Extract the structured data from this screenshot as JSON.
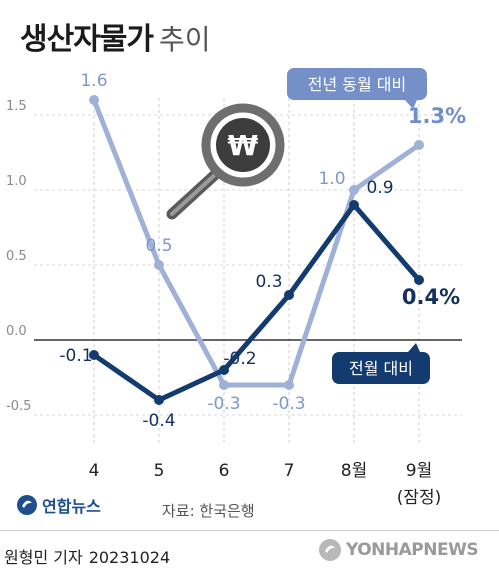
{
  "title": {
    "main": "생산자물가",
    "sub": "추이"
  },
  "chart_data": {
    "type": "line",
    "categories": [
      "4",
      "5",
      "6",
      "7",
      "8월",
      "9월"
    ],
    "category_note": "(잠정)",
    "yticks": [
      "1.5",
      "1.0",
      "0.5",
      "0.0",
      "-0.5"
    ],
    "ylim": [
      -0.6,
      1.6
    ],
    "series": [
      {
        "name": "전년 동월 대비",
        "values": [
          1.6,
          0.5,
          -0.3,
          -0.3,
          1.0,
          1.3
        ],
        "labels": [
          "1.6",
          "0.5",
          "-0.3",
          "-0.3",
          "1.0",
          "1.3%"
        ],
        "color": "#9fb1d6"
      },
      {
        "name": "전월 대비",
        "values": [
          -0.1,
          -0.4,
          -0.2,
          0.3,
          0.9,
          0.4
        ],
        "labels": [
          "-0.1",
          "-0.4",
          "-0.2",
          "0.3",
          "0.9",
          "0.4%"
        ],
        "color": "#143b70"
      }
    ]
  },
  "icon": {
    "symbol": "₩",
    "name": "magnifier-won-icon"
  },
  "footer": {
    "logo": "연합뉴스",
    "source": "자료: 한국은행",
    "credit_name": "원형민 기자",
    "credit_date": "20231024",
    "watermark": "YONHAPNEWS"
  }
}
